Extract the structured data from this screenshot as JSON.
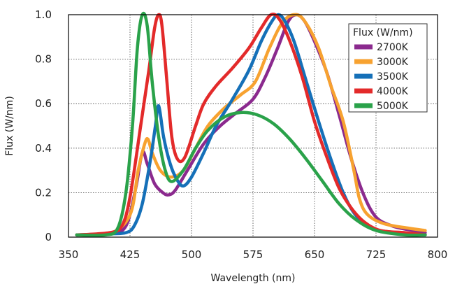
{
  "chart_data": {
    "type": "line",
    "xlabel": "Wavelength (nm)",
    "ylabel": "Flux (W/nm)",
    "xlim": [
      350,
      800
    ],
    "ylim": [
      0,
      1.0
    ],
    "xticks": [
      350,
      425,
      500,
      575,
      650,
      725,
      800
    ],
    "yticks": [
      0,
      0.2,
      0.4,
      0.6,
      0.8,
      1.0
    ],
    "xtick_labels": [
      "350",
      "425",
      "500",
      "575",
      "650",
      "725",
      "800"
    ],
    "ytick_labels": [
      "0",
      "0.2",
      "0.4",
      "0.6",
      "0.8",
      "1.0"
    ],
    "grid": true,
    "legend": {
      "title": "Flux (W/nm)",
      "placement": "top-right"
    },
    "series": [
      {
        "name": "2700K",
        "color": "#8b2a8e",
        "points": [
          [
            360,
            0.01
          ],
          [
            400,
            0.015
          ],
          [
            420,
            0.05
          ],
          [
            432,
            0.22
          ],
          [
            440,
            0.38
          ],
          [
            446,
            0.33
          ],
          [
            455,
            0.24
          ],
          [
            465,
            0.2
          ],
          [
            472,
            0.19
          ],
          [
            480,
            0.21
          ],
          [
            495,
            0.3
          ],
          [
            515,
            0.42
          ],
          [
            535,
            0.5
          ],
          [
            555,
            0.56
          ],
          [
            575,
            0.62
          ],
          [
            590,
            0.72
          ],
          [
            605,
            0.85
          ],
          [
            618,
            0.97
          ],
          [
            628,
            1.0
          ],
          [
            638,
            0.97
          ],
          [
            650,
            0.88
          ],
          [
            665,
            0.74
          ],
          [
            680,
            0.55
          ],
          [
            695,
            0.35
          ],
          [
            710,
            0.19
          ],
          [
            725,
            0.09
          ],
          [
            745,
            0.05
          ],
          [
            770,
            0.03
          ],
          [
            785,
            0.02
          ]
        ]
      },
      {
        "name": "3000K",
        "color": "#f7a230",
        "points": [
          [
            360,
            0.01
          ],
          [
            400,
            0.015
          ],
          [
            425,
            0.1
          ],
          [
            435,
            0.3
          ],
          [
            443,
            0.42
          ],
          [
            447,
            0.44
          ],
          [
            452,
            0.38
          ],
          [
            462,
            0.3
          ],
          [
            475,
            0.27
          ],
          [
            490,
            0.3
          ],
          [
            505,
            0.4
          ],
          [
            520,
            0.5
          ],
          [
            540,
            0.58
          ],
          [
            560,
            0.64
          ],
          [
            578,
            0.7
          ],
          [
            595,
            0.85
          ],
          [
            612,
            0.97
          ],
          [
            628,
            1.0
          ],
          [
            640,
            0.96
          ],
          [
            655,
            0.85
          ],
          [
            670,
            0.68
          ],
          [
            685,
            0.52
          ],
          [
            698,
            0.3
          ],
          [
            705,
            0.17
          ],
          [
            715,
            0.1
          ],
          [
            735,
            0.06
          ],
          [
            765,
            0.04
          ],
          [
            785,
            0.03
          ]
        ]
      },
      {
        "name": "3500K",
        "color": "#1570b8",
        "points": [
          [
            360,
            0.01
          ],
          [
            400,
            0.015
          ],
          [
            420,
            0.02
          ],
          [
            430,
            0.05
          ],
          [
            440,
            0.15
          ],
          [
            450,
            0.35
          ],
          [
            456,
            0.5
          ],
          [
            460,
            0.59
          ],
          [
            466,
            0.45
          ],
          [
            474,
            0.33
          ],
          [
            482,
            0.26
          ],
          [
            490,
            0.23
          ],
          [
            500,
            0.27
          ],
          [
            515,
            0.38
          ],
          [
            530,
            0.5
          ],
          [
            550,
            0.62
          ],
          [
            570,
            0.75
          ],
          [
            585,
            0.88
          ],
          [
            598,
            0.97
          ],
          [
            606,
            1.0
          ],
          [
            614,
            0.97
          ],
          [
            625,
            0.88
          ],
          [
            640,
            0.7
          ],
          [
            655,
            0.52
          ],
          [
            670,
            0.35
          ],
          [
            685,
            0.2
          ],
          [
            700,
            0.1
          ],
          [
            720,
            0.04
          ],
          [
            750,
            0.02
          ],
          [
            785,
            0.01
          ]
        ]
      },
      {
        "name": "4000K",
        "color": "#e32a2a",
        "points": [
          [
            360,
            0.01
          ],
          [
            400,
            0.02
          ],
          [
            415,
            0.05
          ],
          [
            425,
            0.18
          ],
          [
            438,
            0.5
          ],
          [
            448,
            0.75
          ],
          [
            455,
            0.94
          ],
          [
            460,
            1.0
          ],
          [
            464,
            0.95
          ],
          [
            470,
            0.7
          ],
          [
            476,
            0.45
          ],
          [
            483,
            0.35
          ],
          [
            492,
            0.36
          ],
          [
            505,
            0.5
          ],
          [
            515,
            0.6
          ],
          [
            530,
            0.68
          ],
          [
            550,
            0.76
          ],
          [
            570,
            0.85
          ],
          [
            585,
            0.94
          ],
          [
            597,
            1.0
          ],
          [
            607,
            0.98
          ],
          [
            620,
            0.88
          ],
          [
            635,
            0.72
          ],
          [
            650,
            0.52
          ],
          [
            665,
            0.36
          ],
          [
            680,
            0.22
          ],
          [
            695,
            0.13
          ],
          [
            710,
            0.07
          ],
          [
            730,
            0.03
          ],
          [
            760,
            0.02
          ],
          [
            785,
            0.01
          ]
        ]
      },
      {
        "name": "5000K",
        "color": "#2aa24a",
        "points": [
          [
            360,
            0.01
          ],
          [
            395,
            0.01
          ],
          [
            410,
            0.04
          ],
          [
            420,
            0.2
          ],
          [
            428,
            0.5
          ],
          [
            434,
            0.85
          ],
          [
            440,
            1.0
          ],
          [
            446,
            0.95
          ],
          [
            452,
            0.7
          ],
          [
            460,
            0.45
          ],
          [
            468,
            0.3
          ],
          [
            476,
            0.25
          ],
          [
            490,
            0.3
          ],
          [
            505,
            0.4
          ],
          [
            520,
            0.48
          ],
          [
            540,
            0.54
          ],
          [
            560,
            0.56
          ],
          [
            580,
            0.55
          ],
          [
            600,
            0.51
          ],
          [
            620,
            0.44
          ],
          [
            640,
            0.35
          ],
          [
            660,
            0.25
          ],
          [
            680,
            0.15
          ],
          [
            700,
            0.08
          ],
          [
            725,
            0.03
          ],
          [
            760,
            0.01
          ],
          [
            785,
            0.01
          ]
        ]
      }
    ]
  }
}
